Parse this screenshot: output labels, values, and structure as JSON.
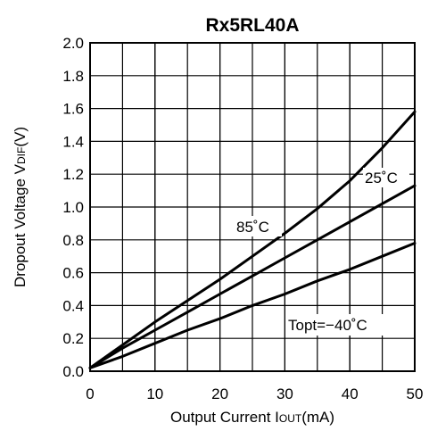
{
  "chart_data": {
    "type": "line",
    "title": "Rx5RL40A",
    "xlabel": {
      "main": "Output Current I",
      "sub": "OUT",
      "unit": "(mA)"
    },
    "ylabel": {
      "main": "Dropout Voltage V",
      "sub": "DIF",
      "unit": "(V)"
    },
    "xlim": [
      0,
      50
    ],
    "ylim": [
      0.0,
      2.0
    ],
    "x_ticks": [
      0,
      10,
      20,
      30,
      40,
      50
    ],
    "x_tick_labels": [
      "0",
      "10",
      "20",
      "30",
      "40",
      "50"
    ],
    "y_ticks": [
      0.0,
      0.2,
      0.4,
      0.6,
      0.8,
      1.0,
      1.2,
      1.4,
      1.6,
      1.8,
      2.0
    ],
    "y_tick_labels": [
      "0.0",
      "0.2",
      "0.4",
      "0.6",
      "0.8",
      "1.0",
      "1.2",
      "1.4",
      "1.6",
      "1.8",
      "2.0"
    ],
    "grid": true,
    "series": [
      {
        "name": "85˚C",
        "x": [
          0,
          5,
          10,
          15,
          20,
          25,
          30,
          35,
          40,
          45,
          50
        ],
        "y": [
          0.02,
          0.16,
          0.3,
          0.43,
          0.56,
          0.7,
          0.84,
          0.99,
          1.16,
          1.36,
          1.58
        ]
      },
      {
        "name": "25˚C",
        "x": [
          0,
          5,
          10,
          15,
          20,
          25,
          30,
          35,
          40,
          45,
          50
        ],
        "y": [
          0.02,
          0.14,
          0.25,
          0.36,
          0.47,
          0.58,
          0.69,
          0.8,
          0.91,
          1.02,
          1.13
        ]
      },
      {
        "name": "Topt=−40˚C",
        "x": [
          0,
          5,
          10,
          15,
          20,
          25,
          30,
          35,
          40,
          45,
          50
        ],
        "y": [
          0.02,
          0.09,
          0.17,
          0.25,
          0.32,
          0.4,
          0.47,
          0.55,
          0.62,
          0.7,
          0.78
        ]
      }
    ]
  }
}
